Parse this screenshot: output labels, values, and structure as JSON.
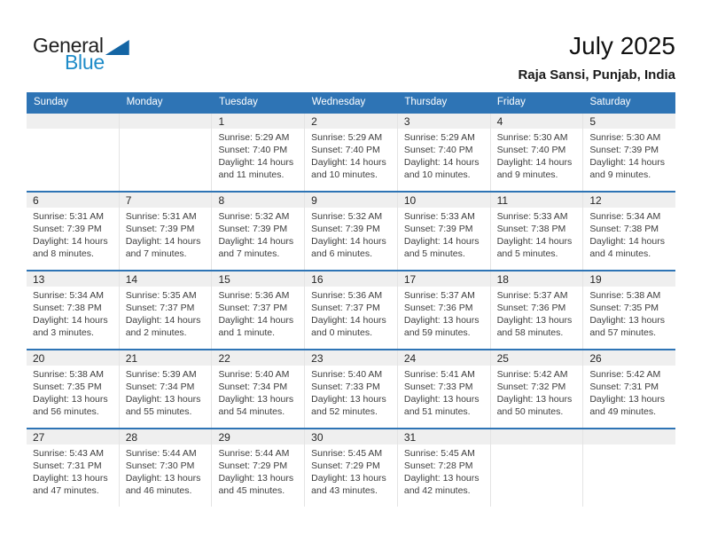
{
  "logo": {
    "part1": "General",
    "part2": "Blue"
  },
  "header": {
    "title": "July 2025",
    "subtitle": "Raja Sansi, Punjab, India"
  },
  "colors": {
    "header_bg": "#2E74B5",
    "week_border": "#2E74B5",
    "day_strip_bg": "#EFEFEF",
    "logo_triangle": "#1465A4",
    "logo_blue_text": "#1E8BC8"
  },
  "weekdays": [
    "Sunday",
    "Monday",
    "Tuesday",
    "Wednesday",
    "Thursday",
    "Friday",
    "Saturday"
  ],
  "weeks": [
    [
      null,
      null,
      {
        "day": "1",
        "sunrise": "Sunrise: 5:29 AM",
        "sunset": "Sunset: 7:40 PM",
        "daylight": "Daylight: 14 hours and 11 minutes."
      },
      {
        "day": "2",
        "sunrise": "Sunrise: 5:29 AM",
        "sunset": "Sunset: 7:40 PM",
        "daylight": "Daylight: 14 hours and 10 minutes."
      },
      {
        "day": "3",
        "sunrise": "Sunrise: 5:29 AM",
        "sunset": "Sunset: 7:40 PM",
        "daylight": "Daylight: 14 hours and 10 minutes."
      },
      {
        "day": "4",
        "sunrise": "Sunrise: 5:30 AM",
        "sunset": "Sunset: 7:40 PM",
        "daylight": "Daylight: 14 hours and 9 minutes."
      },
      {
        "day": "5",
        "sunrise": "Sunrise: 5:30 AM",
        "sunset": "Sunset: 7:39 PM",
        "daylight": "Daylight: 14 hours and 9 minutes."
      }
    ],
    [
      {
        "day": "6",
        "sunrise": "Sunrise: 5:31 AM",
        "sunset": "Sunset: 7:39 PM",
        "daylight": "Daylight: 14 hours and 8 minutes."
      },
      {
        "day": "7",
        "sunrise": "Sunrise: 5:31 AM",
        "sunset": "Sunset: 7:39 PM",
        "daylight": "Daylight: 14 hours and 7 minutes."
      },
      {
        "day": "8",
        "sunrise": "Sunrise: 5:32 AM",
        "sunset": "Sunset: 7:39 PM",
        "daylight": "Daylight: 14 hours and 7 minutes."
      },
      {
        "day": "9",
        "sunrise": "Sunrise: 5:32 AM",
        "sunset": "Sunset: 7:39 PM",
        "daylight": "Daylight: 14 hours and 6 minutes."
      },
      {
        "day": "10",
        "sunrise": "Sunrise: 5:33 AM",
        "sunset": "Sunset: 7:39 PM",
        "daylight": "Daylight: 14 hours and 5 minutes."
      },
      {
        "day": "11",
        "sunrise": "Sunrise: 5:33 AM",
        "sunset": "Sunset: 7:38 PM",
        "daylight": "Daylight: 14 hours and 5 minutes."
      },
      {
        "day": "12",
        "sunrise": "Sunrise: 5:34 AM",
        "sunset": "Sunset: 7:38 PM",
        "daylight": "Daylight: 14 hours and 4 minutes."
      }
    ],
    [
      {
        "day": "13",
        "sunrise": "Sunrise: 5:34 AM",
        "sunset": "Sunset: 7:38 PM",
        "daylight": "Daylight: 14 hours and 3 minutes."
      },
      {
        "day": "14",
        "sunrise": "Sunrise: 5:35 AM",
        "sunset": "Sunset: 7:37 PM",
        "daylight": "Daylight: 14 hours and 2 minutes."
      },
      {
        "day": "15",
        "sunrise": "Sunrise: 5:36 AM",
        "sunset": "Sunset: 7:37 PM",
        "daylight": "Daylight: 14 hours and 1 minute."
      },
      {
        "day": "16",
        "sunrise": "Sunrise: 5:36 AM",
        "sunset": "Sunset: 7:37 PM",
        "daylight": "Daylight: 14 hours and 0 minutes."
      },
      {
        "day": "17",
        "sunrise": "Sunrise: 5:37 AM",
        "sunset": "Sunset: 7:36 PM",
        "daylight": "Daylight: 13 hours and 59 minutes."
      },
      {
        "day": "18",
        "sunrise": "Sunrise: 5:37 AM",
        "sunset": "Sunset: 7:36 PM",
        "daylight": "Daylight: 13 hours and 58 minutes."
      },
      {
        "day": "19",
        "sunrise": "Sunrise: 5:38 AM",
        "sunset": "Sunset: 7:35 PM",
        "daylight": "Daylight: 13 hours and 57 minutes."
      }
    ],
    [
      {
        "day": "20",
        "sunrise": "Sunrise: 5:38 AM",
        "sunset": "Sunset: 7:35 PM",
        "daylight": "Daylight: 13 hours and 56 minutes."
      },
      {
        "day": "21",
        "sunrise": "Sunrise: 5:39 AM",
        "sunset": "Sunset: 7:34 PM",
        "daylight": "Daylight: 13 hours and 55 minutes."
      },
      {
        "day": "22",
        "sunrise": "Sunrise: 5:40 AM",
        "sunset": "Sunset: 7:34 PM",
        "daylight": "Daylight: 13 hours and 54 minutes."
      },
      {
        "day": "23",
        "sunrise": "Sunrise: 5:40 AM",
        "sunset": "Sunset: 7:33 PM",
        "daylight": "Daylight: 13 hours and 52 minutes."
      },
      {
        "day": "24",
        "sunrise": "Sunrise: 5:41 AM",
        "sunset": "Sunset: 7:33 PM",
        "daylight": "Daylight: 13 hours and 51 minutes."
      },
      {
        "day": "25",
        "sunrise": "Sunrise: 5:42 AM",
        "sunset": "Sunset: 7:32 PM",
        "daylight": "Daylight: 13 hours and 50 minutes."
      },
      {
        "day": "26",
        "sunrise": "Sunrise: 5:42 AM",
        "sunset": "Sunset: 7:31 PM",
        "daylight": "Daylight: 13 hours and 49 minutes."
      }
    ],
    [
      {
        "day": "27",
        "sunrise": "Sunrise: 5:43 AM",
        "sunset": "Sunset: 7:31 PM",
        "daylight": "Daylight: 13 hours and 47 minutes."
      },
      {
        "day": "28",
        "sunrise": "Sunrise: 5:44 AM",
        "sunset": "Sunset: 7:30 PM",
        "daylight": "Daylight: 13 hours and 46 minutes."
      },
      {
        "day": "29",
        "sunrise": "Sunrise: 5:44 AM",
        "sunset": "Sunset: 7:29 PM",
        "daylight": "Daylight: 13 hours and 45 minutes."
      },
      {
        "day": "30",
        "sunrise": "Sunrise: 5:45 AM",
        "sunset": "Sunset: 7:29 PM",
        "daylight": "Daylight: 13 hours and 43 minutes."
      },
      {
        "day": "31",
        "sunrise": "Sunrise: 5:45 AM",
        "sunset": "Sunset: 7:28 PM",
        "daylight": "Daylight: 13 hours and 42 minutes."
      },
      null,
      null
    ]
  ]
}
